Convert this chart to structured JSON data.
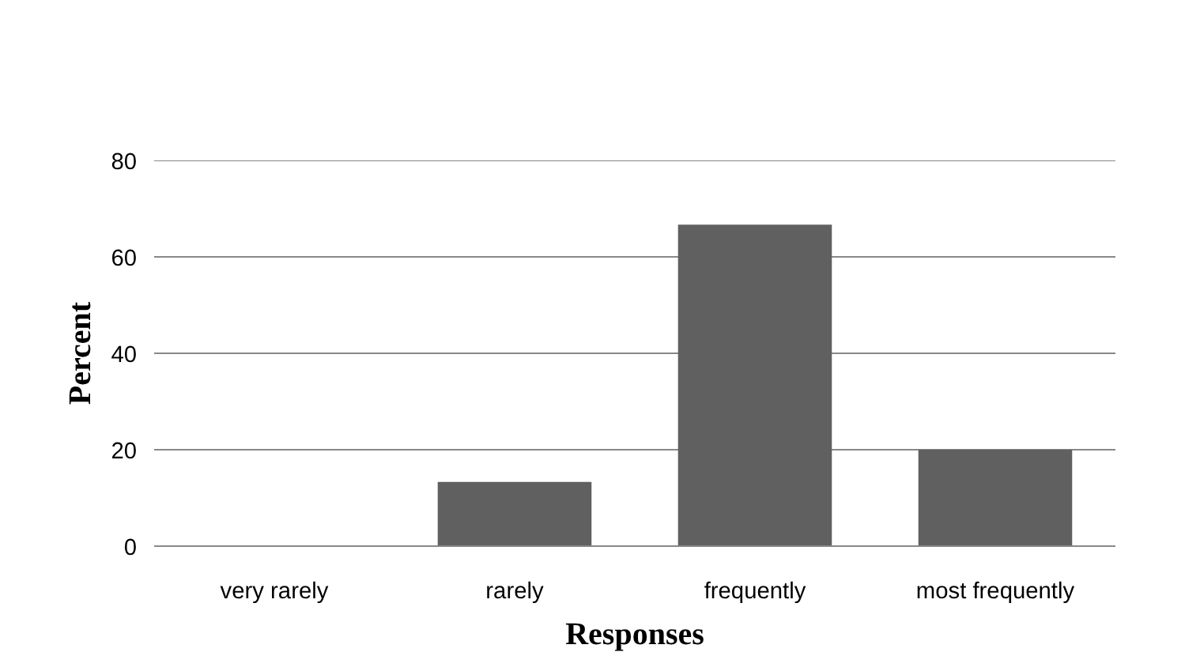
{
  "chart_data": {
    "type": "bar",
    "xlabel": "Responses",
    "ylabel": "Percent",
    "categories": [
      "very rarely",
      "rarely",
      "frequently",
      "most frequently"
    ],
    "values": [
      0,
      13.3,
      66.7,
      20
    ],
    "color": "#606060",
    "ylim": [
      0,
      80
    ],
    "yticks": [
      0,
      20,
      40,
      60,
      80
    ],
    "grid": "y"
  }
}
